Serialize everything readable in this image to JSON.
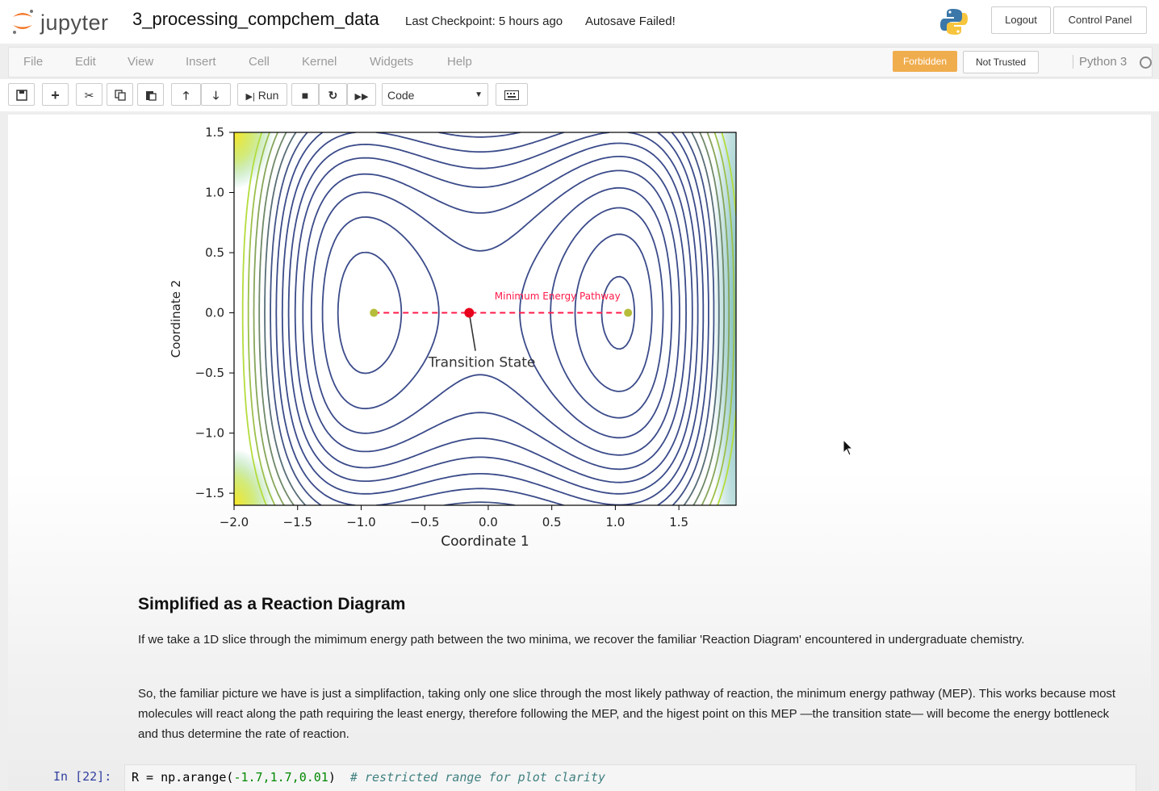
{
  "header": {
    "logo_text": "jupyter",
    "notebook_name": "3_processing_compchem_data",
    "checkpoint": "Last Checkpoint: 5 hours ago",
    "autosave": "Autosave Failed!",
    "logout": "Logout",
    "control_panel": "Control Panel"
  },
  "menu": {
    "items": [
      "File",
      "Edit",
      "View",
      "Insert",
      "Cell",
      "Kernel",
      "Widgets",
      "Help"
    ],
    "forbidden": "Forbidden",
    "not_trusted": "Not Trusted",
    "kernel": "Python 3"
  },
  "toolbar": {
    "run_label": "Run",
    "cell_type": "Code"
  },
  "colors": {
    "forbidden": "#f0ad4e",
    "pathway": "#ff1a4a",
    "minimum": "#b5bd3a",
    "transition_state": "#e8001c",
    "contour": "#3b4b8a",
    "prompt": "#303f9f"
  },
  "chart_data": {
    "type": "contour",
    "xlabel": "Coordinate 1",
    "ylabel": "Coordinate 2",
    "xlim": [
      -2.0,
      1.95
    ],
    "ylim": [
      -1.6,
      1.5
    ],
    "xticks": [
      "−2.0",
      "−1.5",
      "−1.0",
      "−0.5",
      "0.0",
      "0.5",
      "1.0",
      "1.5"
    ],
    "xtick_values": [
      -2.0,
      -1.5,
      -1.0,
      -0.5,
      0.0,
      0.5,
      1.0,
      1.5
    ],
    "yticks": [
      "−1.5",
      "−1.0",
      "−0.5",
      "0.0",
      "0.5",
      "1.0",
      "1.5"
    ],
    "ytick_values": [
      -1.5,
      -1.0,
      -0.5,
      0.0,
      0.5,
      1.0,
      1.5
    ],
    "minima": [
      {
        "x": -0.9,
        "y": 0.0
      },
      {
        "x": 1.1,
        "y": 0.0
      }
    ],
    "transition_state": {
      "x": -0.15,
      "y": 0.0
    },
    "pathway": {
      "x": [
        -0.9,
        1.1
      ],
      "y": [
        0.0,
        0.0
      ],
      "label": "Minimum Energy Pathway"
    },
    "annotation": {
      "text": "Transition State",
      "x": -0.05,
      "y": -0.45
    }
  },
  "markdown": {
    "heading": "Simplified as a Reaction Diagram",
    "p1": "If we take a 1D slice through the mimimum energy path between the two minima, we recover the familiar 'Reaction Diagram' encountered in undergraduate chemistry.",
    "p2": "So, the familiar picture we have is just a simplifaction, taking only one slice through the most likely pathway of reaction, the minimum energy pathway (MEP). This works because most molecules will react along the path requiring the least energy, therefore following the MEP, and the higest point on this MEP —the transition state— will become the energy bottleneck and thus determine the rate of reaction."
  },
  "code_cell": {
    "prompt": "In [22]:",
    "code_main": "R = np.arange(",
    "code_args": "-1.7,1.7,0.01",
    "code_close": ")",
    "comment": "  # restricted range for plot clarity"
  }
}
